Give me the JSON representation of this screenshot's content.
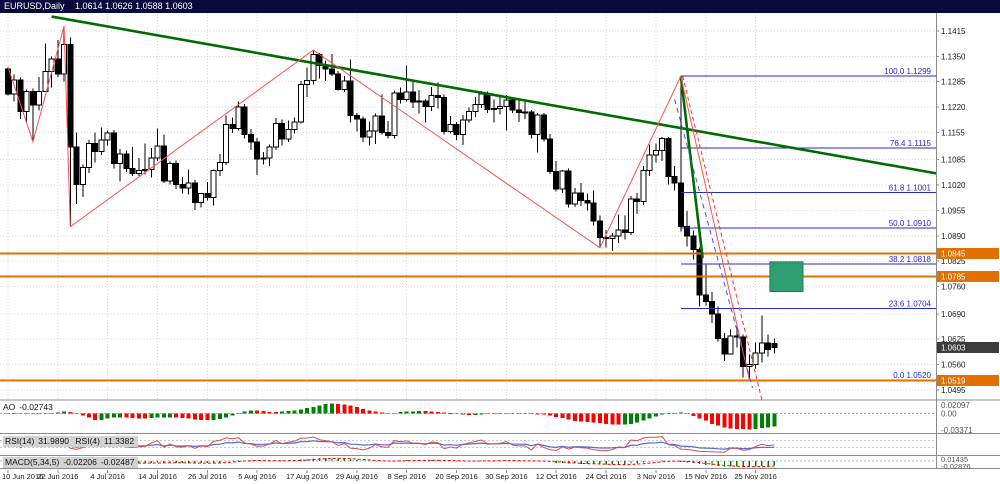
{
  "window": {
    "symbol": "EURUSD,Daily",
    "ohlc": "1.0614 1.0626 1.0588 1.0603"
  },
  "colors": {
    "titlebar_bg": "#0a0a3c",
    "titlebar_text": "#ffffff",
    "chart_bg": "#ffffff",
    "grid": "#d9d9d9",
    "axis_text": "#1a1a1a",
    "panel_border": "#8c8c8c",
    "bull": "#ffffff",
    "bear": "#000000",
    "wick": "#000000",
    "fib": "#2929c8",
    "orange": "#e07000",
    "trend_green": "#006b00",
    "zigzag_red": "#ff5050",
    "dashed_red": "#ff3030",
    "dashed_blue": "#4455ee",
    "rect_fill": "#2f9e73",
    "rect_border": "#1e7a54",
    "ao_up": "#008000",
    "ao_down": "#ff0000",
    "rsi_fast": "#4f6bd8",
    "rsi_slow": "#d85050",
    "macd_hist": "#008000",
    "macd_signal": "#ff0000",
    "current_tag_bg": "#3c3c3c"
  },
  "indicators": {
    "ao": {
      "name": "AO",
      "value": "-0.02743",
      "axis_top": "0.02097",
      "axis_zero": "0.00",
      "axis_bottom": "-0.03371"
    },
    "rsi": {
      "name_fast": "RSI(14)",
      "value_fast": "31.9890",
      "name_slow": "RSI(4)",
      "value_slow": "11.3382"
    },
    "macd": {
      "name": "MACD(5,34,5)",
      "value_main": "-0.02206",
      "value_signal": "-0.02487",
      "axis_top": "0.01435",
      "axis_bottom": "-0.02876"
    }
  },
  "price_axis": {
    "tags": [
      {
        "price": 1.0845,
        "text": "1.0845",
        "bg": "#e07000"
      },
      {
        "price": 1.0785,
        "text": "1.0785",
        "bg": "#e07000"
      },
      {
        "price": 1.0603,
        "text": "1.0603",
        "bg": "#3c3c3c"
      },
      {
        "price": 1.0519,
        "text": "1.0519",
        "bg": "#e07000"
      }
    ]
  },
  "chart_data": {
    "type": "candlestick",
    "title": "EURUSD,Daily",
    "symbol": "EURUSD",
    "timeframe": "Daily",
    "current_bar": {
      "open": "1.0614",
      "high": "1.0626",
      "low": "1.0588",
      "close": "1.0603"
    },
    "ylim": [
      1.046,
      1.147
    ],
    "y_tick_labels": [
      "1.1415",
      "1.1350",
      "1.1285",
      "1.1220",
      "1.1155",
      "1.1085",
      "1.1020",
      "1.0955",
      "1.0890",
      "1.0825",
      "1.0760",
      "1.0690",
      "1.0625",
      "1.0560",
      "1.0495"
    ],
    "x_tick_labels": [
      [
        "10 Jun 2016",
        0
      ],
      [
        "22 Jun 2016",
        8
      ],
      [
        "4 Jul 2016",
        16
      ],
      [
        "14 Jul 2016",
        24
      ],
      [
        "26 Jul 2016",
        32
      ],
      [
        "5 Aug 2016",
        40
      ],
      [
        "17 Aug 2016",
        48
      ],
      [
        "29 Aug 2016",
        56
      ],
      [
        "8 Sep 2016",
        64
      ],
      [
        "20 Sep 2016",
        72
      ],
      [
        "30 Sep 2016",
        80
      ],
      [
        "12 Oct 2016",
        88
      ],
      [
        "24 Oct 2016",
        96
      ],
      [
        "3 Nov 2016",
        104
      ],
      [
        "15 Nov 2016",
        112
      ],
      [
        "25 Nov 2016",
        120
      ]
    ],
    "ohlc": [
      [
        1.1318,
        1.1323,
        1.125,
        1.1254
      ],
      [
        1.1254,
        1.1303,
        1.1234,
        1.129
      ],
      [
        1.129,
        1.1296,
        1.119,
        1.1208
      ],
      [
        1.1208,
        1.1265,
        1.118,
        1.126
      ],
      [
        1.126,
        1.1268,
        1.1131,
        1.1225
      ],
      [
        1.1225,
        1.1297,
        1.1211,
        1.126
      ],
      [
        1.126,
        1.1383,
        1.1258,
        1.1311
      ],
      [
        1.1311,
        1.1349,
        1.127,
        1.1343
      ],
      [
        1.1343,
        1.1392,
        1.1297,
        1.1305
      ],
      [
        1.1305,
        1.1428,
        1.1285,
        1.138
      ],
      [
        1.138,
        1.1398,
        1.0913,
        1.1117
      ],
      [
        1.1117,
        1.1155,
        1.0971,
        1.1022
      ],
      [
        1.1022,
        1.1073,
        1.0989,
        1.1065
      ],
      [
        1.1065,
        1.1135,
        1.1051,
        1.1126
      ],
      [
        1.1126,
        1.1155,
        1.1078,
        1.1106
      ],
      [
        1.1106,
        1.1168,
        1.1097,
        1.1136
      ],
      [
        1.1136,
        1.116,
        1.1122,
        1.1154
      ],
      [
        1.1154,
        1.1161,
        1.1062,
        1.1075
      ],
      [
        1.1075,
        1.1112,
        1.1029,
        1.11
      ],
      [
        1.11,
        1.1108,
        1.1053,
        1.1062
      ],
      [
        1.1062,
        1.1118,
        1.1043,
        1.105
      ],
      [
        1.105,
        1.1089,
        1.1043,
        1.1057
      ],
      [
        1.1057,
        1.1126,
        1.1047,
        1.106
      ],
      [
        1.106,
        1.1115,
        1.104,
        1.109
      ],
      [
        1.109,
        1.1165,
        1.1082,
        1.112
      ],
      [
        1.112,
        1.115,
        1.1025,
        1.103
      ],
      [
        1.103,
        1.108,
        1.1021,
        1.1075
      ],
      [
        1.1075,
        1.1083,
        1.101,
        1.1021
      ],
      [
        1.1021,
        1.1041,
        1.0998,
        1.1012
      ],
      [
        1.1012,
        1.106,
        1.0996,
        1.1025
      ],
      [
        1.1025,
        1.1033,
        1.0956,
        1.0975
      ],
      [
        1.0975,
        1.1,
        1.0963,
        1.0998
      ],
      [
        1.0998,
        1.1028,
        1.098,
        1.0988
      ],
      [
        1.0988,
        1.106,
        1.0968,
        1.1057
      ],
      [
        1.1057,
        1.1099,
        1.1043,
        1.1078
      ],
      [
        1.1078,
        1.1198,
        1.1072,
        1.1175
      ],
      [
        1.1175,
        1.1193,
        1.1154,
        1.1165
      ],
      [
        1.1165,
        1.1234,
        1.116,
        1.122
      ],
      [
        1.122,
        1.1228,
        1.114,
        1.115
      ],
      [
        1.115,
        1.1164,
        1.111,
        1.1131
      ],
      [
        1.1131,
        1.1141,
        1.1046,
        1.1087
      ],
      [
        1.1087,
        1.1105,
        1.1073,
        1.109
      ],
      [
        1.109,
        1.1124,
        1.1069,
        1.1117
      ],
      [
        1.1117,
        1.1192,
        1.111,
        1.1178
      ],
      [
        1.1178,
        1.1188,
        1.1122,
        1.1138
      ],
      [
        1.1138,
        1.1185,
        1.113,
        1.1163
      ],
      [
        1.1163,
        1.1193,
        1.1152,
        1.1182
      ],
      [
        1.1182,
        1.1287,
        1.1178,
        1.1278
      ],
      [
        1.1278,
        1.1322,
        1.1246,
        1.1288
      ],
      [
        1.1288,
        1.1366,
        1.1278,
        1.1355
      ],
      [
        1.1355,
        1.1359,
        1.1293,
        1.1326
      ],
      [
        1.1326,
        1.134,
        1.1287,
        1.1318
      ],
      [
        1.1318,
        1.1356,
        1.13,
        1.1305
      ],
      [
        1.1305,
        1.1312,
        1.1262,
        1.1265
      ],
      [
        1.1265,
        1.1299,
        1.1258,
        1.1287
      ],
      [
        1.1287,
        1.1342,
        1.1181,
        1.1198
      ],
      [
        1.1198,
        1.1205,
        1.1157,
        1.1189
      ],
      [
        1.1189,
        1.1196,
        1.1131,
        1.1143
      ],
      [
        1.1143,
        1.1183,
        1.1122,
        1.1158
      ],
      [
        1.1158,
        1.1203,
        1.1125,
        1.1197
      ],
      [
        1.1197,
        1.1252,
        1.115,
        1.1155
      ],
      [
        1.1155,
        1.1184,
        1.114,
        1.1147
      ],
      [
        1.1147,
        1.1262,
        1.1139,
        1.1256
      ],
      [
        1.1256,
        1.127,
        1.1229,
        1.124
      ],
      [
        1.124,
        1.1327,
        1.1234,
        1.1259
      ],
      [
        1.1259,
        1.1285,
        1.1218,
        1.1233
      ],
      [
        1.1233,
        1.1264,
        1.1204,
        1.1236
      ],
      [
        1.1236,
        1.1241,
        1.118,
        1.1222
      ],
      [
        1.1222,
        1.1271,
        1.121,
        1.125
      ],
      [
        1.125,
        1.1283,
        1.1216,
        1.1244
      ],
      [
        1.1244,
        1.1252,
        1.1149,
        1.1157
      ],
      [
        1.1157,
        1.1197,
        1.1152,
        1.1175
      ],
      [
        1.1175,
        1.1182,
        1.1135,
        1.115
      ],
      [
        1.115,
        1.12,
        1.1123,
        1.1187
      ],
      [
        1.1187,
        1.1219,
        1.1181,
        1.1208
      ],
      [
        1.1208,
        1.1246,
        1.1195,
        1.1226
      ],
      [
        1.1226,
        1.1261,
        1.1218,
        1.1253
      ],
      [
        1.1253,
        1.126,
        1.1205,
        1.1214
      ],
      [
        1.1214,
        1.124,
        1.1181,
        1.1216
      ],
      [
        1.1216,
        1.125,
        1.1201,
        1.1222
      ],
      [
        1.1222,
        1.1251,
        1.116,
        1.1238
      ],
      [
        1.1238,
        1.1241,
        1.1205,
        1.1213
      ],
      [
        1.1213,
        1.124,
        1.1182,
        1.1206
      ],
      [
        1.1206,
        1.1236,
        1.119,
        1.1207
      ],
      [
        1.1207,
        1.1213,
        1.1139,
        1.115
      ],
      [
        1.115,
        1.1205,
        1.1104,
        1.12
      ],
      [
        1.12,
        1.1205,
        1.1132,
        1.1138
      ],
      [
        1.1138,
        1.1151,
        1.1048,
        1.1055
      ],
      [
        1.1055,
        1.1082,
        1.1004,
        1.101
      ],
      [
        1.101,
        1.1059,
        1.0999,
        1.1056
      ],
      [
        1.1056,
        1.1062,
        1.0963,
        1.0972
      ],
      [
        1.0972,
        1.1013,
        1.0964,
        1.1
      ],
      [
        1.1,
        1.1025,
        1.0966,
        1.098
      ],
      [
        1.098,
        1.0998,
        1.0955,
        1.0974
      ],
      [
        1.0974,
        1.1006,
        1.0916,
        1.0928
      ],
      [
        1.0928,
        1.0942,
        1.0859,
        1.0885
      ],
      [
        1.0885,
        1.0905,
        1.086,
        1.0883
      ],
      [
        1.0883,
        1.0897,
        1.0851,
        1.0889
      ],
      [
        1.0889,
        1.0945,
        1.0871,
        1.0905
      ],
      [
        1.0905,
        1.0942,
        1.088,
        1.0898
      ],
      [
        1.0898,
        1.0992,
        1.0892,
        1.0984
      ],
      [
        1.0984,
        1.1,
        1.0946,
        1.0978
      ],
      [
        1.0978,
        1.1069,
        1.0969,
        1.1057
      ],
      [
        1.1057,
        1.1124,
        1.1043,
        1.1097
      ],
      [
        1.1097,
        1.1126,
        1.1078,
        1.1108
      ],
      [
        1.1108,
        1.1143,
        1.1082,
        1.114
      ],
      [
        1.114,
        1.1143,
        1.1021,
        1.1042
      ],
      [
        1.1042,
        1.1069,
        1.1006,
        1.1025
      ],
      [
        1.1025,
        1.1299,
        1.0901,
        1.0914
      ],
      [
        1.0914,
        1.0954,
        1.0862,
        1.089
      ],
      [
        1.089,
        1.0904,
        1.0829,
        1.0855
      ],
      [
        1.0855,
        1.086,
        1.0709,
        1.0738
      ],
      [
        1.0738,
        1.0818,
        1.0711,
        1.0722
      ],
      [
        1.0722,
        1.0746,
        1.0666,
        1.069
      ],
      [
        1.069,
        1.0708,
        1.0619,
        1.0627
      ],
      [
        1.0627,
        1.0641,
        1.0569,
        1.0587
      ],
      [
        1.0587,
        1.0649,
        1.0586,
        1.0633
      ],
      [
        1.0633,
        1.0657,
        1.0604,
        1.063
      ],
      [
        1.063,
        1.0637,
        1.0526,
        1.0555
      ],
      [
        1.0555,
        1.0586,
        1.052,
        1.056
      ],
      [
        1.056,
        1.0616,
        1.055,
        1.059
      ],
      [
        1.059,
        1.0686,
        1.0565,
        1.0615
      ],
      [
        1.0615,
        1.0637,
        1.058,
        1.0598
      ],
      [
        1.0614,
        1.0626,
        1.0588,
        1.0603
      ]
    ],
    "fibonacci": {
      "start_index": 108,
      "levels": [
        {
          "pct": "100.0",
          "price": 1.1299
        },
        {
          "pct": "76.4",
          "price": 1.1115
        },
        {
          "pct": "61.8",
          "price": 1.1001
        },
        {
          "pct": "50.0",
          "price": 1.091
        },
        {
          "pct": "38.2",
          "price": 1.0818
        },
        {
          "pct": "23.6",
          "price": 1.0704
        },
        {
          "pct": "0.0",
          "price": 1.052
        }
      ]
    },
    "horizontal_lines": [
      {
        "price": 1.0845
      },
      {
        "price": 1.0785
      },
      {
        "price": 1.0519
      }
    ],
    "trendlines": [
      {
        "name": "long-descending-trendline",
        "i1": 7,
        "p1": 1.1452,
        "i2": 149,
        "p2": 1.105,
        "color": "#006b00",
        "width": 2.6
      },
      {
        "name": "steep-green-trendline",
        "i1": 108,
        "p1": 1.1299,
        "i2": 111.5,
        "p2": 1.0833,
        "color": "#006b00",
        "width": 2.6
      },
      {
        "name": "zigzag-pattern-line",
        "points": [
          [
            0,
            1.1323
          ],
          [
            4,
            1.1131
          ],
          [
            9,
            1.1428
          ],
          [
            10,
            1.0913
          ],
          [
            49,
            1.1366
          ],
          [
            95,
            1.0859
          ],
          [
            108,
            1.1299
          ],
          [
            119,
            1.052
          ]
        ],
        "color": "#ff5050",
        "width": 1
      },
      {
        "name": "red-dashed-trendline",
        "i1": 108.3,
        "p1": 1.1299,
        "i2": 121,
        "p2": 1.047,
        "color": "#ff3030",
        "width": 1,
        "dash": "4,3"
      },
      {
        "name": "blue-dashed-trendline",
        "i1": 107,
        "p1": 1.124,
        "i2": 119.5,
        "p2": 1.05,
        "color": "#4455ee",
        "width": 1,
        "dash": "5,4"
      }
    ],
    "rectangle": {
      "i1": 122.3,
      "p1": 1.0823,
      "i2": 127.6,
      "p2": 1.0747
    },
    "current_price": 1.0603
  }
}
